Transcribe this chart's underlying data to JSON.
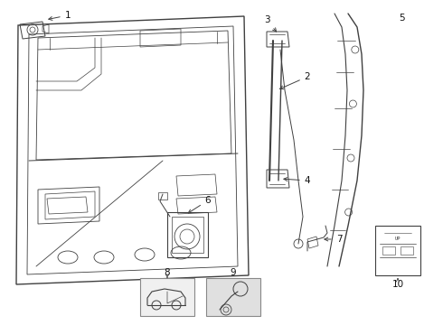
{
  "bg_color": "#ffffff",
  "line_color": "#404040",
  "label_color": "#111111",
  "fig_width": 4.9,
  "fig_height": 3.6,
  "dpi": 100
}
